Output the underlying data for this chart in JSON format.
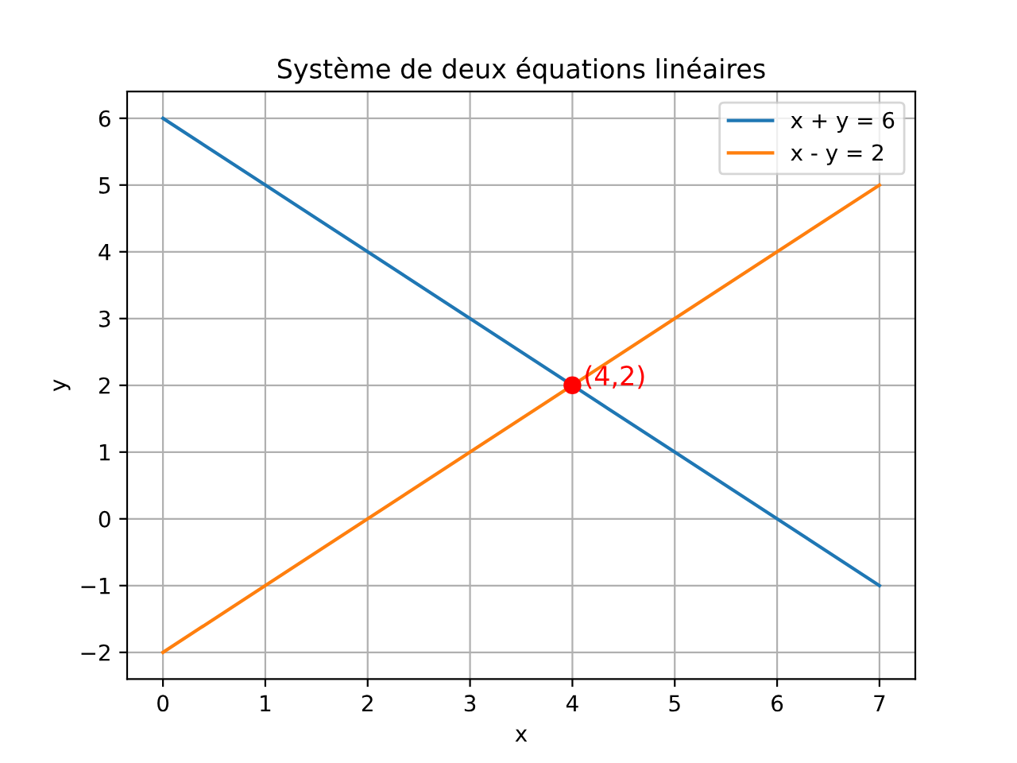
{
  "chart_data": {
    "type": "line",
    "title": "Système de deux équations linéaires",
    "xlabel": "x",
    "ylabel": "y",
    "series": [
      {
        "name": "x + y = 6",
        "color": "#1f77b4",
        "x": [
          0,
          1,
          2,
          3,
          4,
          5,
          6,
          7
        ],
        "values": [
          6,
          5,
          4,
          3,
          2,
          1,
          0,
          -1
        ]
      },
      {
        "name": "x - y = 2",
        "color": "#ff7f0e",
        "x": [
          0,
          1,
          2,
          3,
          4,
          5,
          6,
          7
        ],
        "values": [
          -2,
          -1,
          0,
          1,
          2,
          3,
          4,
          5
        ]
      },
      {
        "type": "scatter",
        "color": "#ff0000",
        "x": [
          4
        ],
        "values": [
          2
        ],
        "marker": "circle"
      }
    ],
    "annotations": [
      {
        "text": "(4,2)",
        "x": 4,
        "y": 2
      }
    ],
    "xlim": [
      -0.35,
      7.35
    ],
    "ylim": [
      -2.4,
      6.4
    ],
    "xticks": [
      0,
      1,
      2,
      3,
      4,
      5,
      6,
      7
    ],
    "yticks": [
      {
        "value": -2,
        "label": "−2"
      },
      {
        "value": -1,
        "label": "−1"
      },
      0,
      1,
      2,
      3,
      4,
      5,
      6
    ],
    "grid": true,
    "legend": "top right",
    "line_style": "solid"
  }
}
